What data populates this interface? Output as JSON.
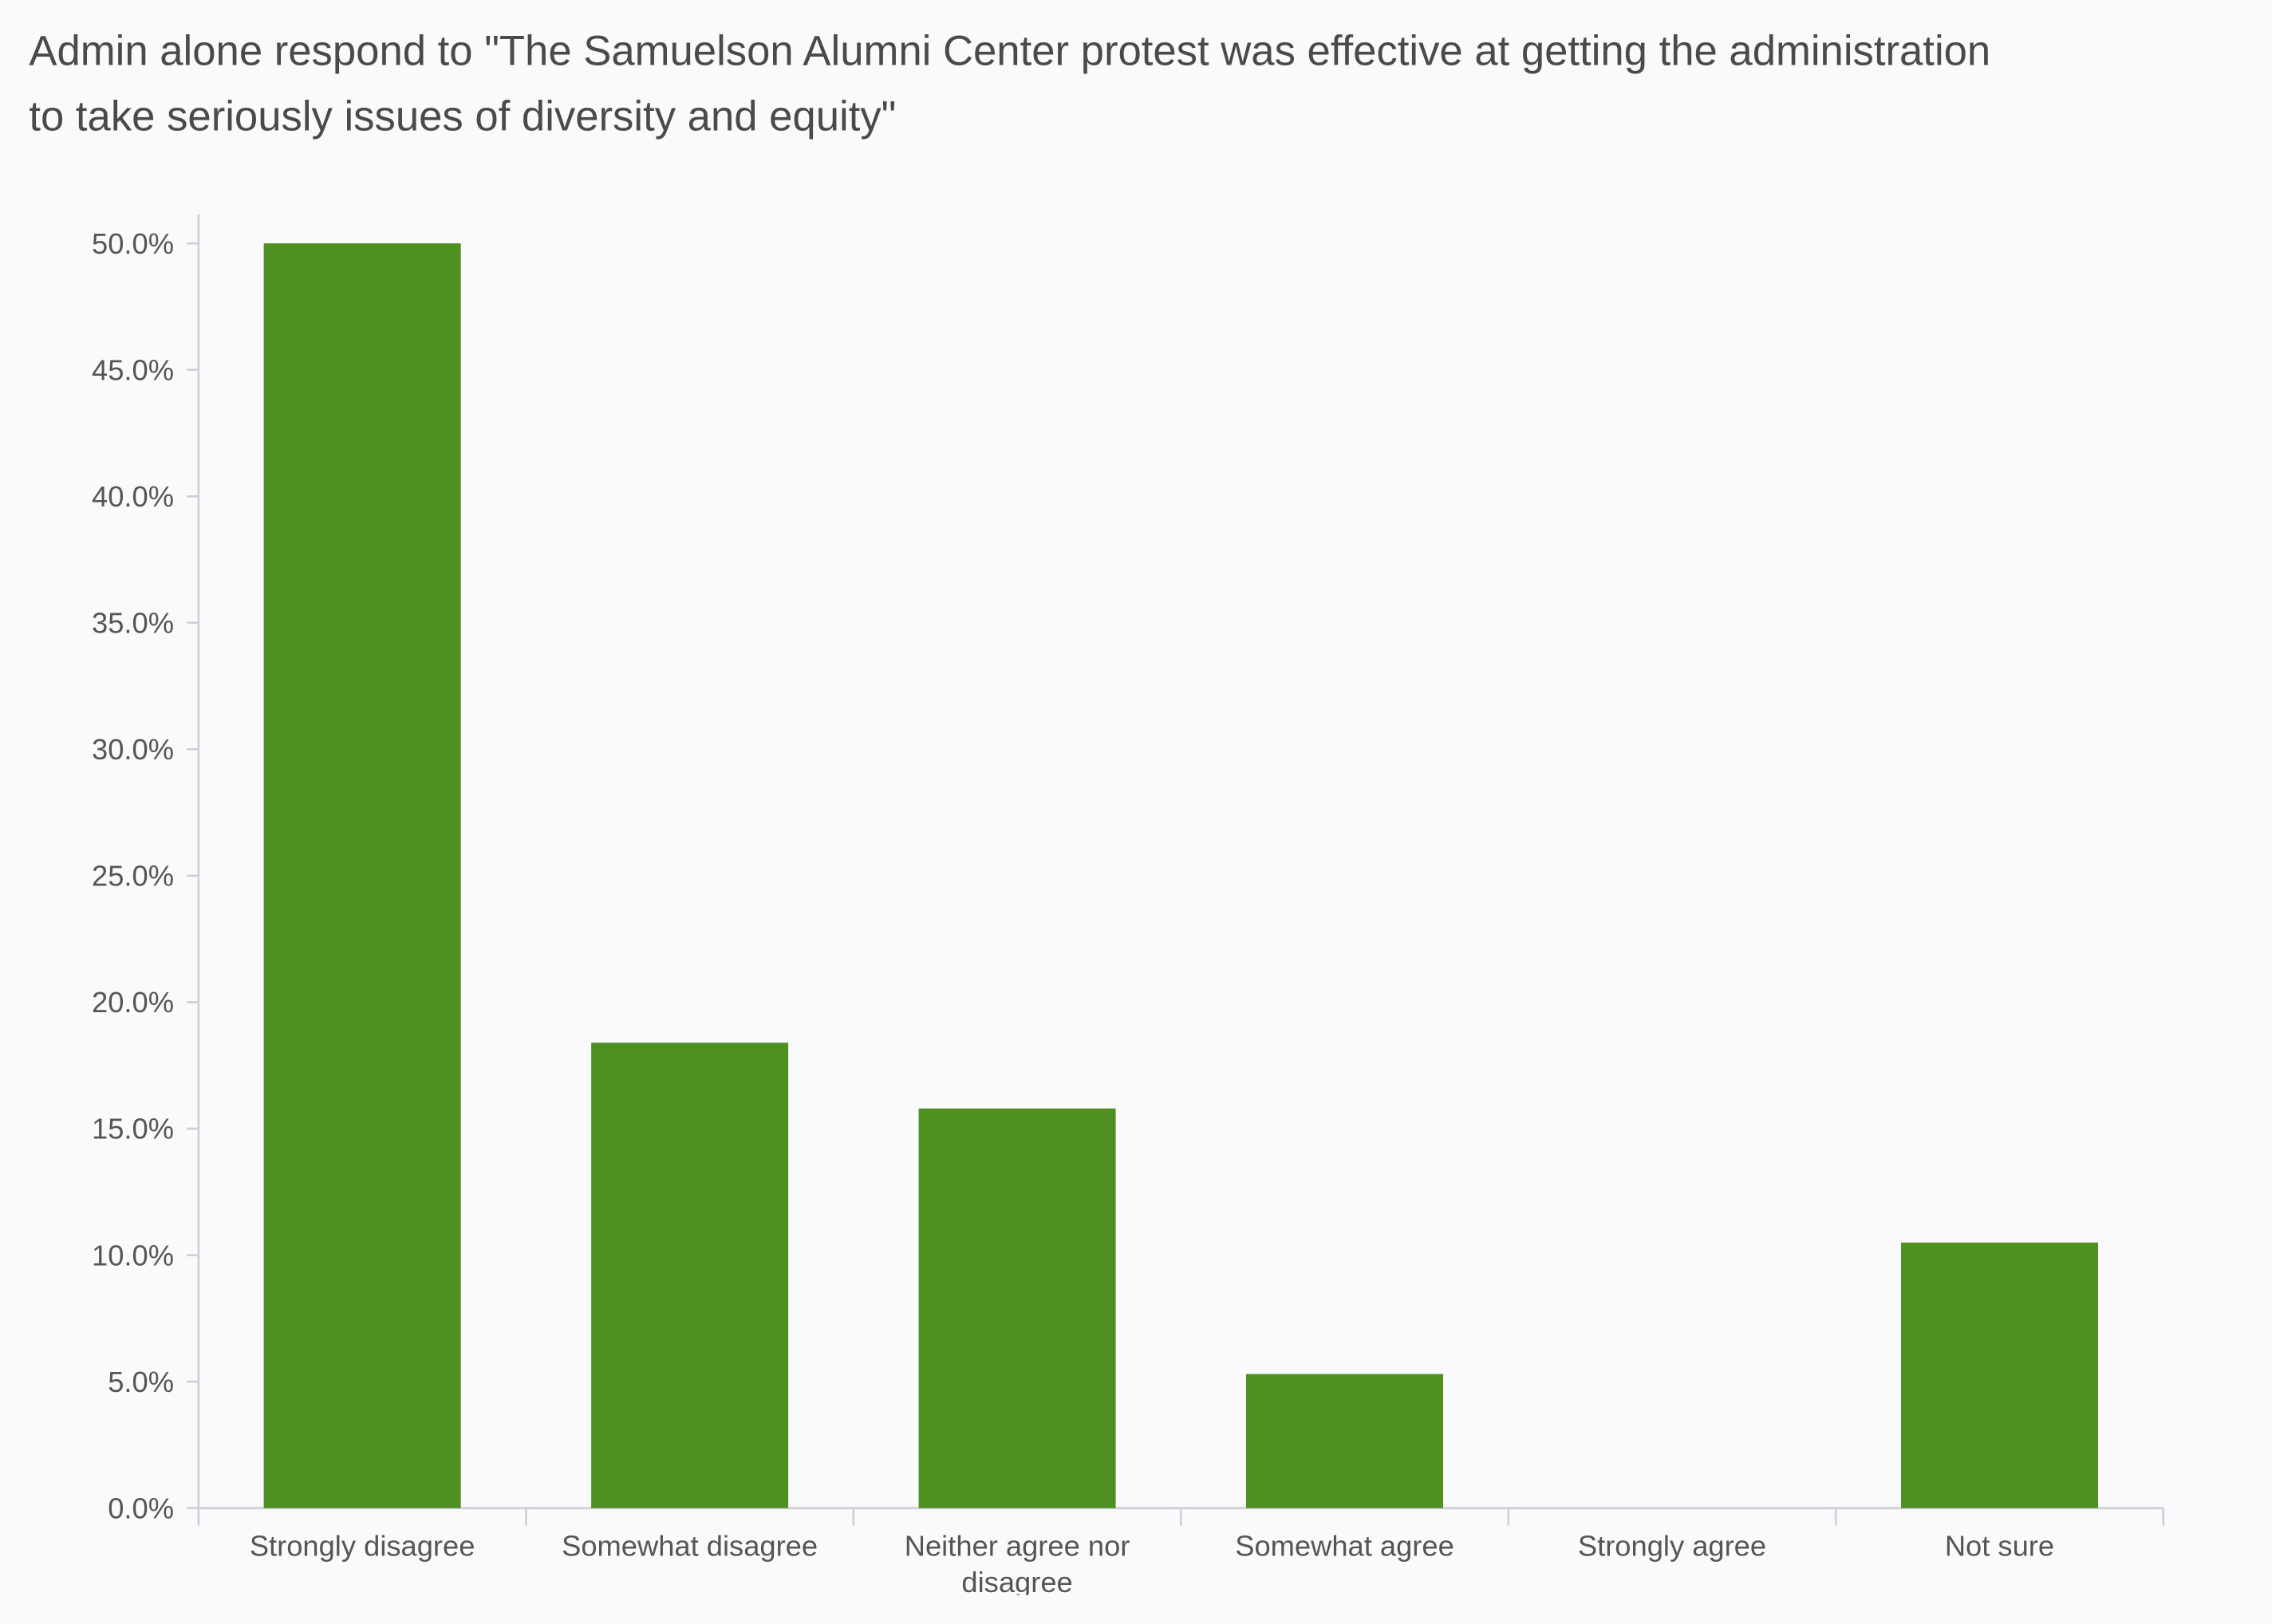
{
  "chart_data": {
    "type": "bar",
    "title_lines": [
      "Admin alone respond to \"The Samuelson Alumni Center protest was effective at getting the administration",
      "to take seriously issues of diversity and equity\""
    ],
    "categories": [
      [
        "Strongly disagree"
      ],
      [
        "Somewhat disagree"
      ],
      [
        "Neither agree nor",
        "disagree"
      ],
      [
        "Somewhat agree"
      ],
      [
        "Strongly agree"
      ],
      [
        "Not sure"
      ]
    ],
    "values": [
      50.0,
      18.4,
      15.8,
      5.3,
      0.0,
      10.5
    ],
    "ylim": [
      0,
      50
    ],
    "yticks": [
      0,
      5,
      10,
      15,
      20,
      25,
      30,
      35,
      40,
      45,
      50
    ],
    "ytick_labels": [
      "0.0%",
      "5.0%",
      "10.0%",
      "15.0%",
      "20.0%",
      "25.0%",
      "30.0%",
      "35.0%",
      "40.0%",
      "45.0%",
      "50.0%"
    ],
    "xlabel": "",
    "ylabel": "",
    "grid": false,
    "bar_color": "#4e9021"
  }
}
